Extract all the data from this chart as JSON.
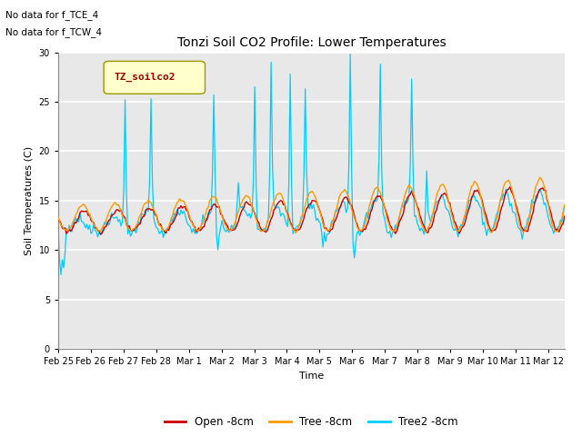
{
  "title": "Tonzi Soil CO2 Profile: Lower Temperatures",
  "xlabel": "Time",
  "ylabel": "Soil Temperatures (C)",
  "annotations": [
    "No data for f_TCE_4",
    "No data for f_TCW_4"
  ],
  "legend_label": "TZ_soilco2",
  "series_labels": [
    "Open -8cm",
    "Tree -8cm",
    "Tree2 -8cm"
  ],
  "series_colors": [
    "#cc0000",
    "#ff9900",
    "#00ccff"
  ],
  "ylim": [
    0,
    30
  ],
  "bg_color": "#e8e8e8",
  "grid_color": "white",
  "tick_labels": [
    "Feb 25",
    "Feb 26",
    "Feb 27",
    "Feb 28",
    "Mar 1",
    "Mar 2",
    "Mar 3",
    "Mar 4",
    "Mar 5",
    "Mar 6",
    "Mar 7",
    "Mar 8",
    "Mar 9",
    "Mar 10",
    "Mar 11",
    "Mar 12"
  ],
  "tick_positions": [
    0,
    1,
    2,
    3,
    4,
    5,
    6,
    7,
    8,
    9,
    10,
    11,
    12,
    13,
    14,
    15
  ]
}
